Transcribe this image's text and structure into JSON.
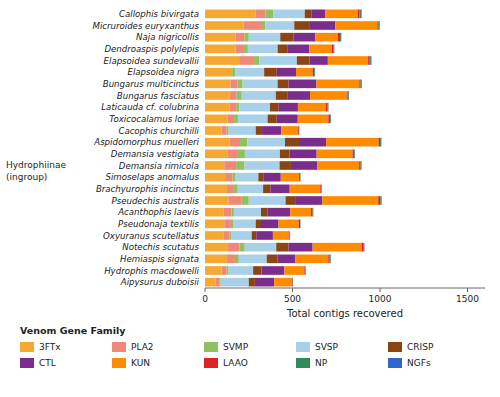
{
  "chart_data": {
    "type": "bar",
    "orientation": "horizontal",
    "stacked": true,
    "grid": false,
    "legend": "bottom",
    "xlabel": "Total contigs recovered",
    "xlim": [
      0,
      1600
    ],
    "xticks": [
      0,
      500,
      1000,
      1500
    ],
    "annotations": [
      "Hydrophiinae",
      "(ingroup)",
      "Venom Gene Family"
    ],
    "categories": [
      "Callophis bivirgata",
      "Micruroides euryxanthus",
      "Naja nigricollis",
      "Dendroaspis polylepis",
      "Elapsoidea sundevallii",
      "Elapsoidea nigra",
      "Bungarus multicinctus",
      "Bungarus fasciatus",
      "Laticauda cf. colubrina",
      "Toxicocalamus loriae",
      "Cacophis churchilli",
      "Aspidomorphus muelleri",
      "Demansia vestigiata",
      "Demansia rimicola",
      "Simoselaps anomalus",
      "Brachyurophis incinctus",
      "Pseudechis australis",
      "Acanthophis laevis",
      "Pseudonaja textilis",
      "Oxyuranus scutellatus",
      "Notechis scutatus",
      "Hemiaspis signata",
      "Hydrophis macdowelli",
      "Aipysurus duboisii"
    ],
    "series": [
      {
        "name": "3FTx",
        "color": "#F5A832",
        "values": [
          290,
          220,
          175,
          175,
          195,
          155,
          145,
          140,
          140,
          130,
          95,
          140,
          130,
          110,
          115,
          125,
          135,
          105,
          110,
          108,
          132,
          125,
          95,
          60
        ]
      },
      {
        "name": "PLA2",
        "color": "#F08878",
        "values": [
          55,
          100,
          50,
          48,
          85,
          0,
          42,
          40,
          38,
          36,
          28,
          60,
          58,
          68,
          42,
          40,
          75,
          46,
          38,
          32,
          65,
          46,
          28,
          22
        ]
      },
      {
        "name": "SVMP",
        "color": "#90C060",
        "values": [
          45,
          25,
          25,
          22,
          30,
          18,
          28,
          30,
          18,
          22,
          12,
          42,
          40,
          48,
          18,
          22,
          40,
          14,
          12,
          12,
          30,
          22,
          12,
          8
        ]
      },
      {
        "name": "SVSP",
        "color": "#A8D0E8",
        "values": [
          180,
          165,
          180,
          170,
          215,
          165,
          200,
          195,
          175,
          170,
          155,
          215,
          200,
          200,
          130,
          145,
          210,
          155,
          130,
          115,
          180,
          160,
          140,
          160
        ]
      },
      {
        "name": "CRISP",
        "color": "#8B4513",
        "values": [
          38,
          85,
          75,
          55,
          72,
          72,
          62,
          65,
          50,
          52,
          36,
          80,
          55,
          65,
          28,
          42,
          55,
          36,
          30,
          26,
          70,
          62,
          48,
          35
        ]
      },
      {
        "name": "CTL",
        "color": "#7B2D8B",
        "values": [
          80,
          150,
          125,
          125,
          105,
          110,
          160,
          130,
          110,
          120,
          110,
          155,
          155,
          150,
          100,
          110,
          155,
          130,
          100,
          95,
          138,
          100,
          130,
          110
        ]
      },
      {
        "name": "KUN",
        "color": "#FF8C00",
        "values": [
          185,
          240,
          130,
          130,
          230,
          95,
          245,
          210,
          160,
          175,
          95,
          300,
          205,
          240,
          105,
          175,
          320,
          120,
          115,
          90,
          280,
          190,
          115,
          100
        ]
      },
      {
        "name": "LAAO",
        "color": "#DD2222",
        "values": [
          10,
          5,
          12,
          8,
          9,
          8,
          6,
          5,
          9,
          9,
          5,
          8,
          8,
          8,
          5,
          5,
          12,
          8,
          8,
          5,
          9,
          8,
          5,
          5
        ]
      },
      {
        "name": "NP",
        "color": "#2E8B57",
        "values": [
          8,
          6,
          5,
          4,
          7,
          4,
          7,
          6,
          4,
          4,
          2,
          5,
          4,
          4,
          2,
          3,
          5,
          3,
          2,
          2,
          5,
          4,
          2,
          2
        ]
      },
      {
        "name": "NGFs",
        "color": "#3366CC",
        "values": [
          4,
          3,
          2,
          2,
          3,
          2,
          2,
          2,
          2,
          2,
          1,
          3,
          2,
          2,
          1,
          1,
          3,
          2,
          1,
          1,
          2,
          2,
          1,
          1
        ]
      }
    ]
  }
}
